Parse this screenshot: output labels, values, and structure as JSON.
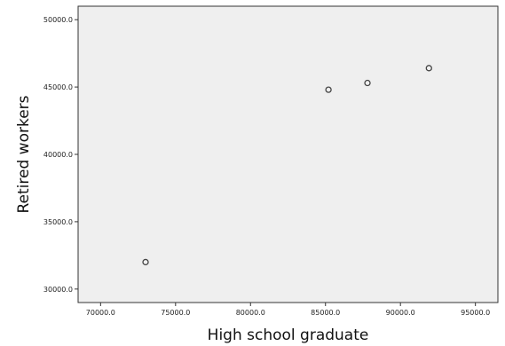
{
  "chart_data": {
    "type": "scatter",
    "title": "",
    "xlabel": "High school graduate",
    "ylabel": "Retired workers",
    "xlim": [
      68500,
      96500
    ],
    "ylim": [
      29000,
      51000
    ],
    "x_ticks": [
      70000,
      75000,
      80000,
      85000,
      90000,
      95000
    ],
    "x_tick_labels": [
      "70000.0",
      "75000.0",
      "80000.0",
      "85000.0",
      "90000.0",
      "95000.0"
    ],
    "y_ticks": [
      30000,
      35000,
      40000,
      45000,
      50000
    ],
    "y_tick_labels": [
      "30000.0",
      "35000.0",
      "40000.0",
      "45000.0",
      "50000.0"
    ],
    "grid": false,
    "marker": "hollow-circle",
    "colors": {
      "plot_background": "#efefef",
      "frame": "#333333",
      "marker_stroke": "#444444"
    },
    "points": [
      {
        "x": 73000,
        "y": 32000
      },
      {
        "x": 85200,
        "y": 44800
      },
      {
        "x": 87800,
        "y": 45300
      },
      {
        "x": 91900,
        "y": 46400
      }
    ]
  }
}
